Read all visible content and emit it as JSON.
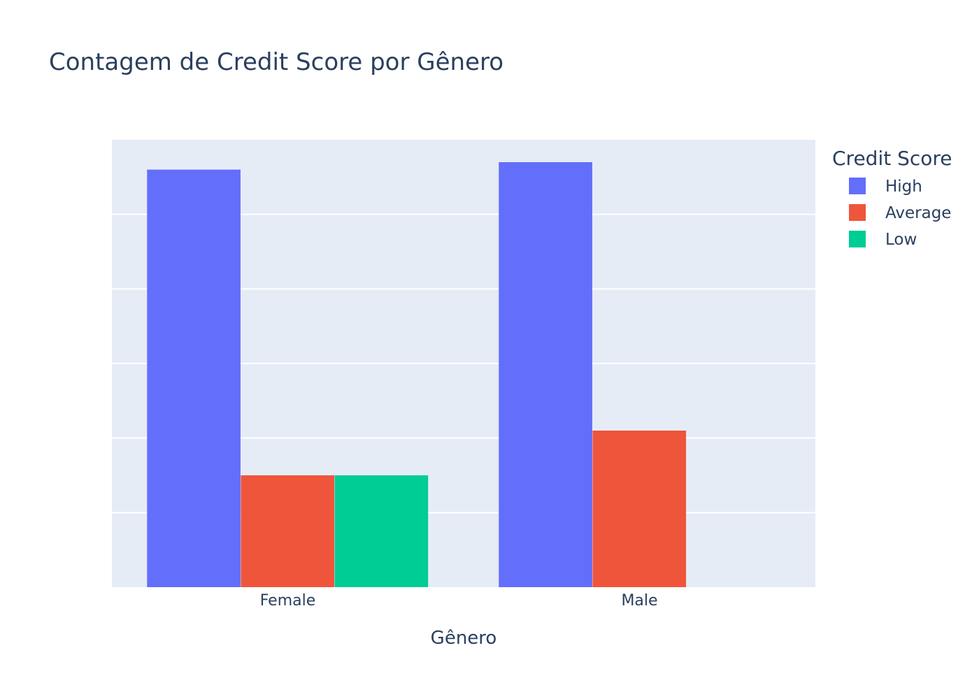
{
  "chart_data": {
    "type": "bar",
    "title": "Contagem de Credit Score por Gênero",
    "xlabel": "Gênero",
    "ylabel": "",
    "categories": [
      "Female",
      "Male"
    ],
    "legend_title": "Credit Score",
    "legend_position": "top-right",
    "grid": true,
    "ylim": [
      0,
      30
    ],
    "y_gridlines": [
      5,
      10,
      15,
      20,
      25
    ],
    "series": [
      {
        "name": "High",
        "values": [
          28,
          28.5
        ],
        "color": "#636efa"
      },
      {
        "name": "Average",
        "values": [
          7.5,
          10.5
        ],
        "color": "#ef553b"
      },
      {
        "name": "Low",
        "values": [
          7.5,
          0
        ],
        "color": "#00cc96"
      }
    ],
    "plot_background": "#e5ecf6",
    "text_color": "#2a3f5f"
  }
}
